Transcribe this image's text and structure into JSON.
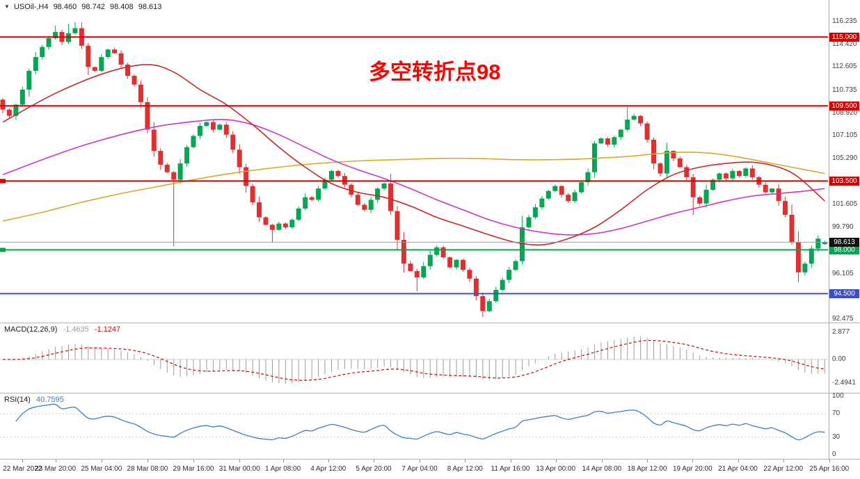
{
  "header": {
    "dropdown_arrow": "▼",
    "symbol": "USOil-,H4",
    "open": "98.460",
    "high": "98.742",
    "low": "98.408",
    "close": "98.613"
  },
  "annotation": {
    "text": "多空转折点98",
    "color": "#ff0000"
  },
  "colors": {
    "background": "#ffffff",
    "candle_up": "#00a651",
    "candle_down": "#e02f2f",
    "ma_red": "#c62828",
    "ma_magenta": "#cc33cc",
    "ma_orange": "#d8a826",
    "hline_red": "#d40000",
    "hline_green": "#00a651",
    "hline_blue": "#3a50c8",
    "current_price_line": "#9a9a9a",
    "current_price_tag": "#111111",
    "macd_histogram": "#9a9a9a",
    "macd_signal": "#cc0000",
    "macd_zero_line": "#cfcfcf",
    "rsi_line": "#3c7ebf",
    "rsi_levels": "#c8c8c8",
    "axis_text": "#3c3c3c",
    "separator": "#b0b0b0"
  },
  "chart_data": {
    "type": "candlestick",
    "title": "USOil- H4 with MACD and RSI",
    "candles": {
      "first_open": 110.0,
      "closes": [
        109.2,
        108.7,
        109.6,
        110.8,
        112.3,
        113.4,
        114.2,
        114.9,
        115.4,
        114.6,
        115.3,
        115.7,
        114.3,
        112.6,
        112.3,
        113.4,
        114.0,
        113.7,
        112.8,
        111.9,
        111.2,
        109.8,
        107.6,
        105.9,
        104.8,
        104.2,
        103.6,
        104.9,
        106.2,
        107.1,
        107.9,
        108.2,
        107.6,
        108.0,
        107.2,
        106.0,
        104.6,
        103.1,
        101.8,
        100.6,
        100.0,
        99.6,
        100.1,
        99.8,
        100.4,
        101.3,
        102.2,
        102.0,
        102.9,
        103.6,
        104.3,
        103.9,
        103.2,
        102.4,
        101.6,
        101.2,
        102.0,
        102.9,
        103.3,
        101.1,
        98.8,
        96.9,
        96.3,
        95.8,
        96.7,
        97.6,
        98.2,
        97.4,
        96.6,
        97.2,
        96.4,
        95.7,
        94.3,
        93.1,
        93.9,
        94.8,
        95.6,
        96.4,
        97.1,
        99.8,
        100.6,
        101.4,
        102.1,
        102.7,
        103.1,
        102.4,
        101.9,
        102.6,
        103.4,
        104.2,
        106.5,
        106.9,
        106.4,
        107.0,
        107.6,
        108.4,
        108.7,
        108.1,
        106.8,
        104.9,
        104.1,
        105.9,
        105.3,
        104.6,
        103.8,
        102.2,
        101.7,
        102.8,
        103.6,
        104.1,
        103.7,
        104.3,
        103.9,
        104.5,
        103.8,
        103.2,
        102.6,
        102.9,
        101.9,
        100.8,
        98.6,
        96.2,
        96.9,
        98.1,
        98.9,
        98.613
      ],
      "wick_overrides": [
        {
          "i": 8,
          "high": 115.9
        },
        {
          "i": 10,
          "high": 116.05
        },
        {
          "i": 11,
          "high": 116.2
        },
        {
          "i": 26,
          "low": 98.3
        },
        {
          "i": 41,
          "low": 98.6
        },
        {
          "i": 63,
          "low": 94.7
        },
        {
          "i": 73,
          "low": 92.62
        },
        {
          "i": 95,
          "high": 109.43
        },
        {
          "i": 105,
          "low": 100.8
        },
        {
          "i": 121,
          "low": 95.4
        }
      ],
      "last_candle": {
        "o": 98.46,
        "h": 98.742,
        "l": 98.408,
        "c": 98.613
      }
    },
    "moving_averages": {
      "red": [
        [
          0,
          108.2
        ],
        [
          8,
          110.5
        ],
        [
          16,
          112.2
        ],
        [
          22,
          112.8
        ],
        [
          26,
          112.2
        ],
        [
          30,
          110.8
        ],
        [
          34,
          109.6
        ],
        [
          38,
          108.0
        ],
        [
          42,
          106.2
        ],
        [
          46,
          104.6
        ],
        [
          50,
          103.3
        ],
        [
          54,
          102.6
        ],
        [
          58,
          102.2
        ],
        [
          62,
          101.5
        ],
        [
          66,
          100.6
        ],
        [
          70,
          99.9
        ],
        [
          74,
          99.2
        ],
        [
          78,
          98.6
        ],
        [
          82,
          98.4
        ],
        [
          86,
          98.9
        ],
        [
          90,
          99.8
        ],
        [
          94,
          101.2
        ],
        [
          98,
          102.8
        ],
        [
          102,
          104.0
        ],
        [
          106,
          104.6
        ],
        [
          110,
          104.9
        ],
        [
          114,
          105.0
        ],
        [
          118,
          104.6
        ],
        [
          121,
          103.8
        ],
        [
          125,
          101.9
        ]
      ],
      "magenta": [
        [
          0,
          104.0
        ],
        [
          6,
          105.2
        ],
        [
          12,
          106.3
        ],
        [
          18,
          107.2
        ],
        [
          24,
          107.9
        ],
        [
          30,
          108.3
        ],
        [
          34,
          108.4
        ],
        [
          38,
          108.0
        ],
        [
          42,
          107.2
        ],
        [
          46,
          106.2
        ],
        [
          50,
          105.2
        ],
        [
          54,
          104.4
        ],
        [
          58,
          103.7
        ],
        [
          62,
          102.9
        ],
        [
          66,
          102.0
        ],
        [
          70,
          101.2
        ],
        [
          74,
          100.4
        ],
        [
          78,
          99.8
        ],
        [
          82,
          99.4
        ],
        [
          86,
          99.2
        ],
        [
          90,
          99.3
        ],
        [
          94,
          99.7
        ],
        [
          98,
          100.3
        ],
        [
          102,
          100.9
        ],
        [
          106,
          101.4
        ],
        [
          110,
          101.9
        ],
        [
          114,
          102.3
        ],
        [
          118,
          102.5
        ],
        [
          122,
          102.7
        ],
        [
          125,
          102.9
        ]
      ],
      "orange": [
        [
          0,
          100.3
        ],
        [
          6,
          101.0
        ],
        [
          12,
          101.8
        ],
        [
          18,
          102.5
        ],
        [
          24,
          103.1
        ],
        [
          30,
          103.7
        ],
        [
          36,
          104.2
        ],
        [
          42,
          104.6
        ],
        [
          48,
          104.9
        ],
        [
          54,
          105.1
        ],
        [
          60,
          105.2
        ],
        [
          66,
          105.3
        ],
        [
          72,
          105.3
        ],
        [
          78,
          105.2
        ],
        [
          84,
          105.2
        ],
        [
          90,
          105.3
        ],
        [
          96,
          105.5
        ],
        [
          100,
          105.7
        ],
        [
          104,
          105.8
        ],
        [
          108,
          105.7
        ],
        [
          112,
          105.4
        ],
        [
          116,
          105.0
        ],
        [
          120,
          104.6
        ],
        [
          125,
          104.1
        ]
      ]
    },
    "hlines": [
      {
        "price": 115.0,
        "label": "115.000",
        "color": "#d40000",
        "left_marker": false
      },
      {
        "price": 109.5,
        "label": "109.500",
        "color": "#d40000",
        "left_marker": false
      },
      {
        "price": 103.5,
        "label": "103.500",
        "color": "#d40000",
        "left_marker": true
      },
      {
        "price": 98.0,
        "label": "98.000",
        "color": "#00a651",
        "left_marker": true
      },
      {
        "price": 94.5,
        "label": "94.500",
        "color": "#3a50c8",
        "left_marker": false
      }
    ],
    "current_price": {
      "value": 98.613,
      "label": "98.613"
    },
    "price_axis_labels": [
      [
        "116.235",
        116.235
      ],
      [
        "114.420",
        114.42
      ],
      [
        "112.605",
        112.605
      ],
      [
        "110.735",
        110.735
      ],
      [
        "108.920",
        108.92
      ],
      [
        "107.105",
        107.105
      ],
      [
        "105.290",
        105.29
      ],
      [
        "101.605",
        101.605
      ],
      [
        "99.790",
        99.79
      ],
      [
        "96.105",
        96.105
      ],
      [
        "92.475",
        92.475
      ]
    ],
    "macd": {
      "name": "MACD(12,26,9)",
      "main_value": "-1.4635",
      "signal_value": "-1.1247",
      "fast": 12,
      "slow": 26,
      "signal_period": 9,
      "axis_labels": [
        [
          "2.877",
          2.877
        ],
        [
          "0.00",
          0
        ],
        [
          "-2.4941",
          -2.4941
        ]
      ]
    },
    "rsi": {
      "name": "RSI(14)",
      "value": "40.7595",
      "period": 14,
      "axis_labels": [
        [
          "100",
          100
        ],
        [
          "70",
          70
        ],
        [
          "30",
          30
        ],
        [
          "0",
          0
        ]
      ],
      "levels": [
        70,
        30
      ]
    },
    "time_labels": [
      [
        "22 Mar 2022",
        3
      ],
      [
        "23 Mar 20:00",
        8
      ],
      [
        "25 Mar 04:00",
        15
      ],
      [
        "28 Mar 08:00",
        22
      ],
      [
        "29 Mar 16:00",
        29
      ],
      [
        "31 Mar 00:00",
        36
      ],
      [
        "1 Apr 08:00",
        42.6
      ],
      [
        "4 Apr 12:00",
        49.5
      ],
      [
        "5 Apr 20:00",
        56.4
      ],
      [
        "7 Apr 04:00",
        63.4
      ],
      [
        "8 Apr 12:00",
        70.3
      ],
      [
        "11 Apr 16:00",
        77.2
      ],
      [
        "13 Apr 00:00",
        84.1
      ],
      [
        "14 Apr 08:00",
        91.1
      ],
      [
        "18 Apr 12:00",
        98
      ],
      [
        "19 Apr 20:00",
        104.9
      ],
      [
        "21 Apr 04:00",
        111.8
      ],
      [
        "22 Apr 12:00",
        118.7
      ],
      [
        "25 Apr 16:00",
        125.7
      ]
    ]
  }
}
